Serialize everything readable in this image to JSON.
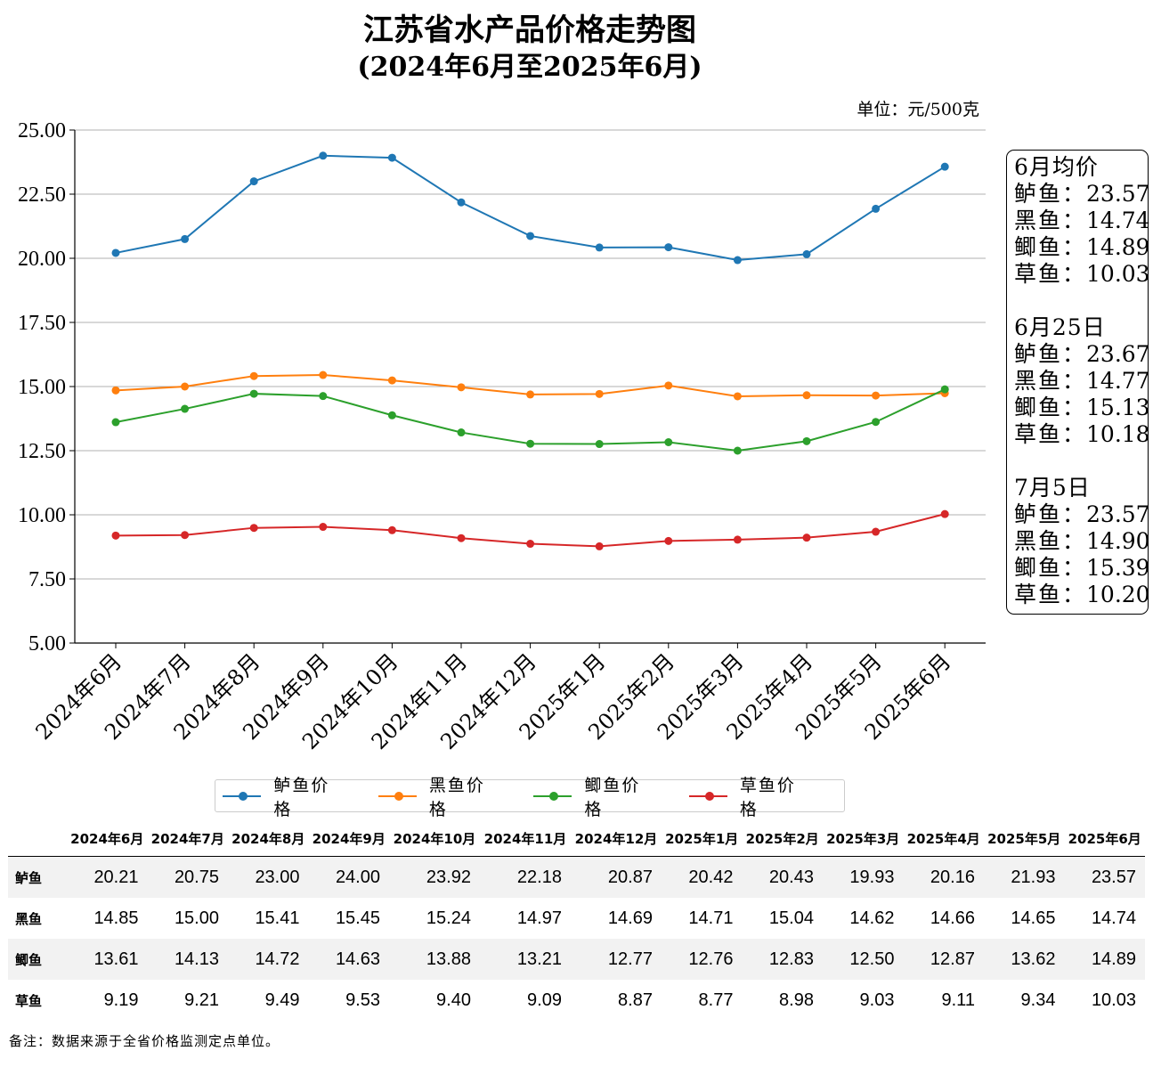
{
  "title": "江苏省水产品价格走势图",
  "subtitle": "(2024年6月至2025年6月)",
  "unit": "单位：元/500克",
  "colors": {
    "鲈鱼": "#1f77b4",
    "黑鱼": "#ff7f0e",
    "鲫鱼": "#2ca02c",
    "草鱼": "#d62728",
    "grid": "#b0b0b0"
  },
  "chart_data": {
    "type": "line",
    "categories": [
      "2024年6月",
      "2024年7月",
      "2024年8月",
      "2024年9月",
      "2024年10月",
      "2024年11月",
      "2024年12月",
      "2025年1月",
      "2025年2月",
      "2025年3月",
      "2025年4月",
      "2025年5月",
      "2025年6月"
    ],
    "series": [
      {
        "name": "鲈鱼价格",
        "key": "鲈鱼",
        "values": [
          20.21,
          20.75,
          23.0,
          24.0,
          23.92,
          22.18,
          20.87,
          20.42,
          20.43,
          19.93,
          20.16,
          21.93,
          23.57
        ]
      },
      {
        "name": "黑鱼价格",
        "key": "黑鱼",
        "values": [
          14.85,
          15.0,
          15.41,
          15.45,
          15.24,
          14.97,
          14.69,
          14.71,
          15.04,
          14.62,
          14.66,
          14.65,
          14.74
        ]
      },
      {
        "name": "鲫鱼价格",
        "key": "鲫鱼",
        "values": [
          13.61,
          14.13,
          14.72,
          14.63,
          13.88,
          13.21,
          12.77,
          12.76,
          12.83,
          12.5,
          12.87,
          13.62,
          14.89
        ]
      },
      {
        "name": "草鱼价格",
        "key": "草鱼",
        "values": [
          9.19,
          9.21,
          9.49,
          9.53,
          9.4,
          9.09,
          8.87,
          8.77,
          8.98,
          9.03,
          9.11,
          9.34,
          10.03
        ]
      }
    ],
    "yticks": [
      "5.00",
      "7.50",
      "10.00",
      "12.50",
      "15.00",
      "17.50",
      "20.00",
      "22.50",
      "25.00"
    ],
    "ylim": [
      5,
      25
    ],
    "grid": "horizontal",
    "legend": "bottom-center"
  },
  "infobox": {
    "groups": [
      {
        "title": "6月均价",
        "rows": [
          {
            "name": "鲈鱼：",
            "value": "23.57"
          },
          {
            "name": "黑鱼：",
            "value": "14.74"
          },
          {
            "name": "鲫鱼：",
            "value": "14.89"
          },
          {
            "name": "草鱼：",
            "value": "10.03"
          }
        ]
      },
      {
        "title": "6月25日",
        "rows": [
          {
            "name": "鲈鱼：",
            "value": "23.67"
          },
          {
            "name": "黑鱼：",
            "value": "14.77"
          },
          {
            "name": "鲫鱼：",
            "value": "15.13"
          },
          {
            "name": "草鱼：",
            "value": "10.18"
          }
        ]
      },
      {
        "title": "7月5日",
        "rows": [
          {
            "name": "鲈鱼：",
            "value": "23.57"
          },
          {
            "name": "黑鱼：",
            "value": "14.90"
          },
          {
            "name": "鲫鱼：",
            "value": "15.39"
          },
          {
            "name": "草鱼：",
            "value": "10.20"
          }
        ]
      }
    ]
  },
  "table": {
    "headers": [
      "2024年6月",
      "2024年7月",
      "2024年8月",
      "2024年9月",
      "2024年10月",
      "2024年11月",
      "2024年12月",
      "2025年1月",
      "2025年2月",
      "2025年3月",
      "2025年4月",
      "2025年5月",
      "2025年6月"
    ],
    "rows": [
      {
        "label": "鲈鱼",
        "cells": [
          "20.21",
          "20.75",
          "23.00",
          "24.00",
          "23.92",
          "22.18",
          "20.87",
          "20.42",
          "20.43",
          "19.93",
          "20.16",
          "21.93",
          "23.57"
        ]
      },
      {
        "label": "黑鱼",
        "cells": [
          "14.85",
          "15.00",
          "15.41",
          "15.45",
          "15.24",
          "14.97",
          "14.69",
          "14.71",
          "15.04",
          "14.62",
          "14.66",
          "14.65",
          "14.74"
        ]
      },
      {
        "label": "鲫鱼",
        "cells": [
          "13.61",
          "14.13",
          "14.72",
          "14.63",
          "13.88",
          "13.21",
          "12.77",
          "12.76",
          "12.83",
          "12.50",
          "12.87",
          "13.62",
          "14.89"
        ]
      },
      {
        "label": "草鱼",
        "cells": [
          "9.19",
          "9.21",
          "9.49",
          "9.53",
          "9.40",
          "9.09",
          "8.87",
          "8.77",
          "8.98",
          "9.03",
          "9.11",
          "9.34",
          "10.03"
        ]
      }
    ]
  },
  "note": "备注：数据来源于全省价格监测定点单位。"
}
